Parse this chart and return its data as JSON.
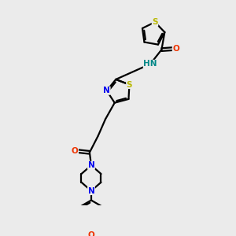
{
  "bg_color": "#ebebeb",
  "bond_color": "#000000",
  "bond_width": 1.6,
  "atom_colors": {
    "N": "#0000ee",
    "S": "#b8b800",
    "O": "#ee3300",
    "NH": "#008888",
    "C": "#000000"
  },
  "font_size": 7.5
}
